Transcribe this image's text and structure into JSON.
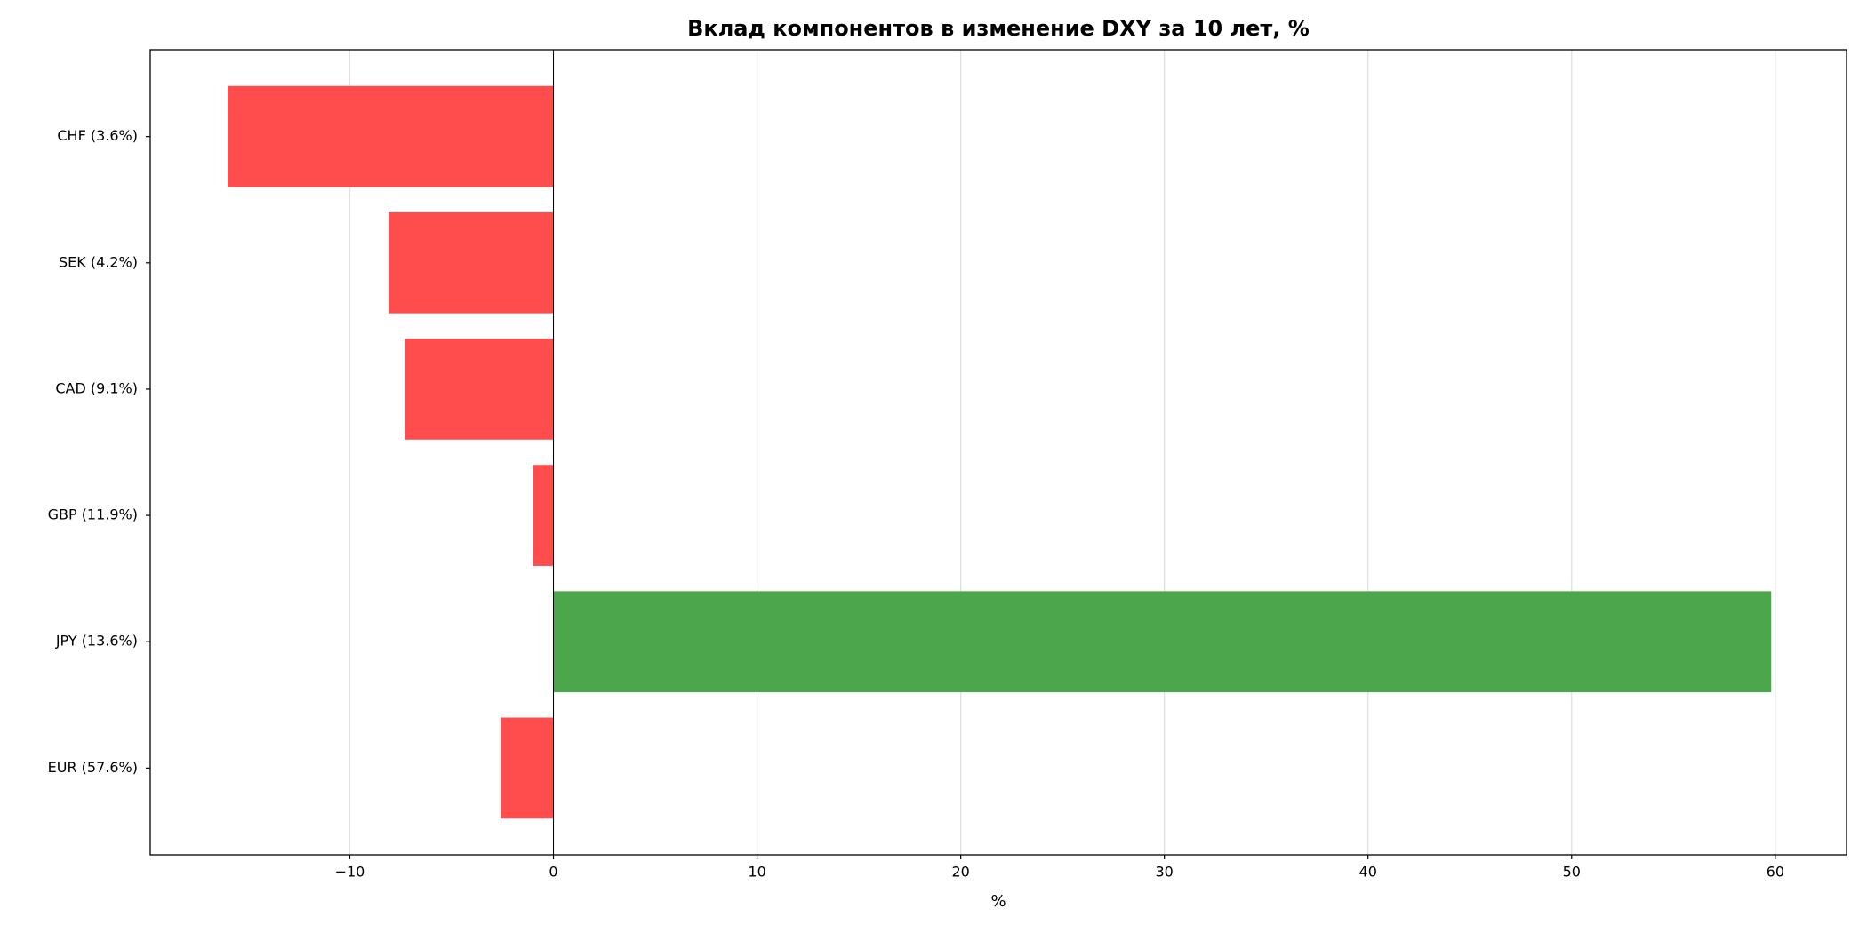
{
  "chart_data": {
    "type": "barh",
    "title": "Вклад компонентов в изменение DXY за 10 лет, %",
    "xlabel": "%",
    "categories": [
      "EUR (57.6%)",
      "JPY (13.6%)",
      "GBP (11.9%)",
      "CAD (9.1%)",
      "SEK (4.2%)",
      "CHF (3.6%)"
    ],
    "values": [
      -2.6,
      59.8,
      -1.0,
      -7.3,
      -8.1,
      -16.0
    ],
    "colors": [
      "#ff4d4d",
      "#4ca64c",
      "#ff4d4d",
      "#ff4d4d",
      "#ff4d4d",
      "#ff4d4d"
    ],
    "xlim": [
      -19.8,
      63.5
    ],
    "xticks": [
      {
        "value": -10,
        "label": "−10"
      },
      0,
      10,
      20,
      30,
      40,
      50,
      60
    ],
    "grid": true
  }
}
